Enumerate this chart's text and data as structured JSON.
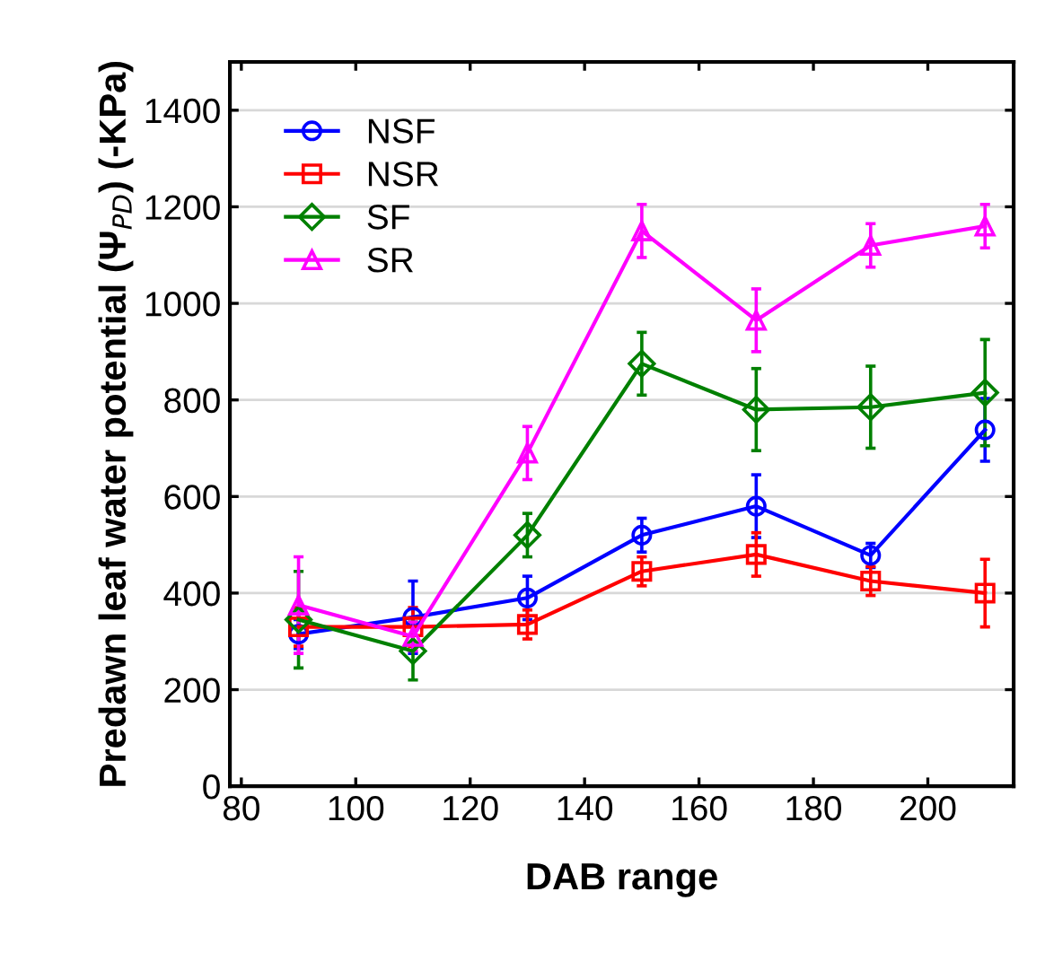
{
  "chart_data": {
    "type": "line",
    "xlabel": "DAB range",
    "ylabel": "Predawn leaf water potential (Ψ$_{PD}$) (-KPa)",
    "x": [
      90,
      110,
      130,
      150,
      170,
      190,
      210
    ],
    "xlim": [
      78,
      215
    ],
    "xticks": [
      80,
      100,
      120,
      140,
      160,
      180,
      200
    ],
    "ylim": [
      0,
      1500
    ],
    "yticks": [
      0,
      200,
      400,
      600,
      800,
      1000,
      1200,
      1400
    ],
    "grid": "y",
    "legend": "top left",
    "series": [
      {
        "name": "NSF",
        "color": "#0000ff",
        "marker": "circle",
        "values": [
          315,
          350,
          390,
          520,
          580,
          478,
          738
        ],
        "errors": [
          30,
          75,
          45,
          35,
          65,
          25,
          65
        ]
      },
      {
        "name": "NSR",
        "color": "#ff0000",
        "marker": "square",
        "values": [
          330,
          330,
          335,
          445,
          480,
          425,
          400
        ],
        "errors": [
          40,
          40,
          30,
          30,
          45,
          30,
          70
        ]
      },
      {
        "name": "SF",
        "color": "#008000",
        "marker": "diamond",
        "values": [
          345,
          280,
          520,
          875,
          780,
          785,
          815
        ],
        "errors": [
          100,
          60,
          45,
          65,
          85,
          85,
          110
        ]
      },
      {
        "name": "SR",
        "color": "#ff00ff",
        "marker": "triangle",
        "values": [
          375,
          310,
          690,
          1150,
          965,
          1120,
          1160
        ],
        "errors": [
          100,
          30,
          55,
          55,
          65,
          45,
          45
        ]
      }
    ]
  }
}
